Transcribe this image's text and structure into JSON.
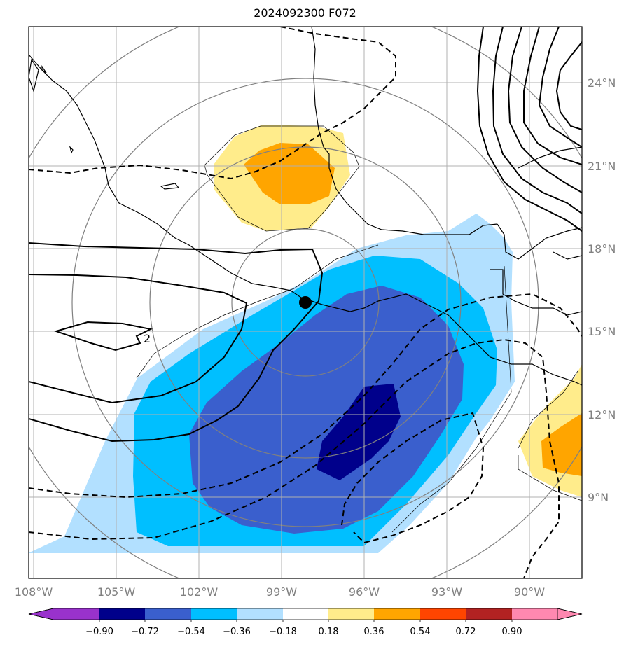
{
  "title": "2024092300 F072",
  "map": {
    "lon_range": [
      -108,
      -89
    ],
    "lat_range": [
      6,
      26
    ],
    "lon_ticks": [
      "108°W",
      "105°W",
      "102°W",
      "99°W",
      "96°W",
      "93°W",
      "90°W"
    ],
    "lat_ticks": [
      "9°N",
      "12°N",
      "15°N",
      "18°N",
      "21°N",
      "24°N"
    ],
    "grid": true,
    "center_marker": {
      "lon": -98.1,
      "lat": 16.0
    },
    "contour_label": "2"
  },
  "colorbar": {
    "ticks": [
      "−0.90",
      "−0.72",
      "−0.54",
      "−0.36",
      "−0.18",
      "0.18",
      "0.36",
      "0.54",
      "0.72",
      "0.90"
    ],
    "colors": [
      "#9932cc",
      "#00008b",
      "#3a5fcd",
      "#00bfff",
      "#b2e0ff",
      "#ffffff",
      "#ffec8b",
      "#ffa500",
      "#ff4500",
      "#b22222",
      "#ff88b0"
    ]
  },
  "colors": {
    "neg_1": "#b2e0ff",
    "neg_2": "#00bfff",
    "neg_3": "#3a5fcd",
    "neg_4": "#00008b",
    "pos_1": "#ffec8b",
    "pos_2": "#ffa500",
    "grid": "#a0a0a0",
    "rings": "#808080"
  }
}
